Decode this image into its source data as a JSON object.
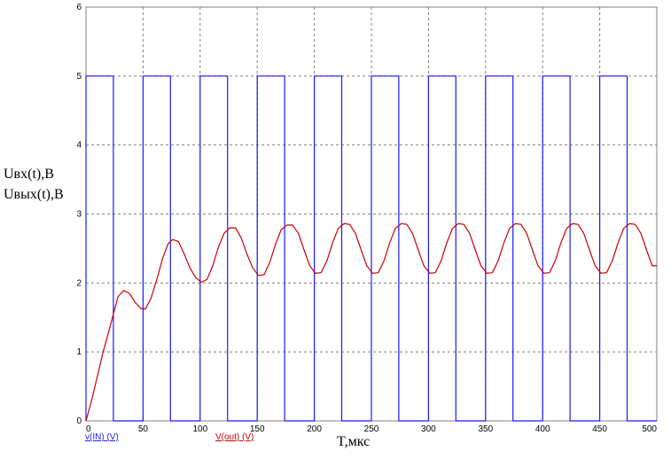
{
  "chart_data": {
    "type": "line",
    "title": "",
    "ylabel_lines": [
      "Uвх(t),В",
      "Uвых(t),В"
    ],
    "xlabel": "T,мкс",
    "xlim": [
      0,
      500
    ],
    "ylim": [
      0,
      6
    ],
    "x_ticks": [
      "0",
      "50",
      "100",
      "150",
      "200",
      "250",
      "300",
      "350",
      "400",
      "450",
      "500"
    ],
    "y_ticks": [
      "0",
      "1",
      "2",
      "3",
      "4",
      "5",
      "6"
    ],
    "grid": true,
    "legend": [
      {
        "label": "v(IN) (V)",
        "color": "#1a1aff"
      },
      {
        "label": "V(out) (V)",
        "color": "#cc0000"
      }
    ],
    "series": [
      {
        "name": "v(IN) (V)",
        "color": "#1a1aff",
        "step": true,
        "x": [
          0,
          0,
          24,
          24,
          50,
          50,
          74,
          74,
          100,
          100,
          124,
          124,
          150,
          150,
          174,
          174,
          200,
          200,
          224,
          224,
          250,
          250,
          274,
          274,
          300,
          300,
          324,
          324,
          350,
          350,
          374,
          374,
          400,
          400,
          424,
          424,
          450,
          450,
          474,
          474,
          500
        ],
        "values": [
          0,
          5,
          5,
          0,
          0,
          5,
          5,
          0,
          0,
          5,
          5,
          0,
          0,
          5,
          5,
          0,
          0,
          5,
          5,
          0,
          0,
          5,
          5,
          0,
          0,
          5,
          5,
          0,
          0,
          5,
          5,
          0,
          0,
          5,
          5,
          0,
          0,
          5,
          5,
          0,
          0
        ]
      },
      {
        "name": "V(out) (V)",
        "color": "#cc0000",
        "x": [
          0,
          5,
          10,
          15,
          20,
          24,
          28,
          33,
          38,
          43,
          48,
          52,
          57,
          62,
          67,
          72,
          76,
          81,
          86,
          91,
          96,
          101,
          106,
          111,
          116,
          121,
          126,
          131,
          136,
          141,
          146,
          151,
          156,
          161,
          166,
          171,
          176,
          181,
          186,
          191,
          196,
          201,
          206,
          211,
          216,
          221,
          226,
          231,
          236,
          241,
          246,
          251,
          256,
          261,
          266,
          271,
          276,
          281,
          286,
          291,
          296,
          301,
          306,
          311,
          316,
          321,
          326,
          331,
          336,
          341,
          346,
          351,
          356,
          361,
          366,
          371,
          376,
          381,
          386,
          391,
          396,
          401,
          406,
          411,
          416,
          421,
          426,
          431,
          436,
          441,
          446,
          451,
          456,
          461,
          466,
          471,
          476,
          481,
          486,
          491,
          496,
          500
        ],
        "values": [
          0.0,
          0.3,
          0.65,
          1.0,
          1.3,
          1.55,
          1.8,
          1.89,
          1.85,
          1.72,
          1.63,
          1.62,
          1.78,
          2.05,
          2.35,
          2.57,
          2.63,
          2.6,
          2.42,
          2.22,
          2.08,
          2.01,
          2.05,
          2.25,
          2.52,
          2.72,
          2.8,
          2.8,
          2.65,
          2.42,
          2.22,
          2.11,
          2.12,
          2.3,
          2.56,
          2.77,
          2.84,
          2.84,
          2.72,
          2.48,
          2.25,
          2.14,
          2.15,
          2.32,
          2.58,
          2.79,
          2.86,
          2.85,
          2.72,
          2.48,
          2.25,
          2.14,
          2.15,
          2.32,
          2.58,
          2.79,
          2.86,
          2.85,
          2.72,
          2.48,
          2.25,
          2.14,
          2.15,
          2.32,
          2.58,
          2.79,
          2.86,
          2.85,
          2.72,
          2.48,
          2.25,
          2.14,
          2.15,
          2.32,
          2.58,
          2.79,
          2.86,
          2.85,
          2.72,
          2.48,
          2.25,
          2.14,
          2.15,
          2.32,
          2.58,
          2.79,
          2.86,
          2.85,
          2.72,
          2.48,
          2.25,
          2.14,
          2.15,
          2.32,
          2.58,
          2.79,
          2.86,
          2.85,
          2.72,
          2.48,
          2.25,
          2.25
        ]
      }
    ]
  }
}
